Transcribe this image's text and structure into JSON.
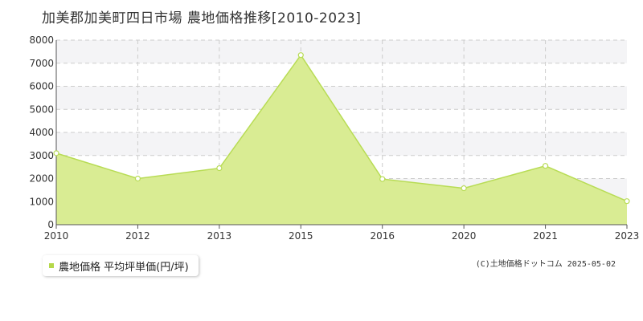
{
  "title": "加美郡加美町四日市場 農地価格推移[2010-2023]",
  "legend": {
    "label": "農地価格 平均坪単価(円/坪)"
  },
  "copyright": "(C)土地価格ドットコム 2025-05-02",
  "colors": {
    "area_fill": "#d9ec93",
    "line": "#b8dc55",
    "marker_fill": "#ffffff",
    "marker_stroke": "#b8dc55",
    "legend_swatch": "#b5d84a",
    "band": "#f4f4f6",
    "grid": "#cccccc",
    "axis": "#555555"
  },
  "chart_data": {
    "type": "area",
    "title": "加美郡加美町四日市場 農地価格推移[2010-2023]",
    "x": [
      "2010",
      "2012",
      "2013",
      "2015",
      "2016",
      "2020",
      "2021",
      "2023"
    ],
    "series": [
      {
        "name": "農地価格 平均坪単価(円/坪)",
        "values": [
          3100,
          2000,
          2450,
          7350,
          1980,
          1580,
          2550,
          1020
        ]
      }
    ],
    "ylim": [
      0,
      8000
    ],
    "yticks": [
      0,
      1000,
      2000,
      3000,
      4000,
      5000,
      6000,
      7000,
      8000
    ],
    "xlabel": "",
    "ylabel": "",
    "grid": true,
    "legend_position": "bottom-left"
  }
}
